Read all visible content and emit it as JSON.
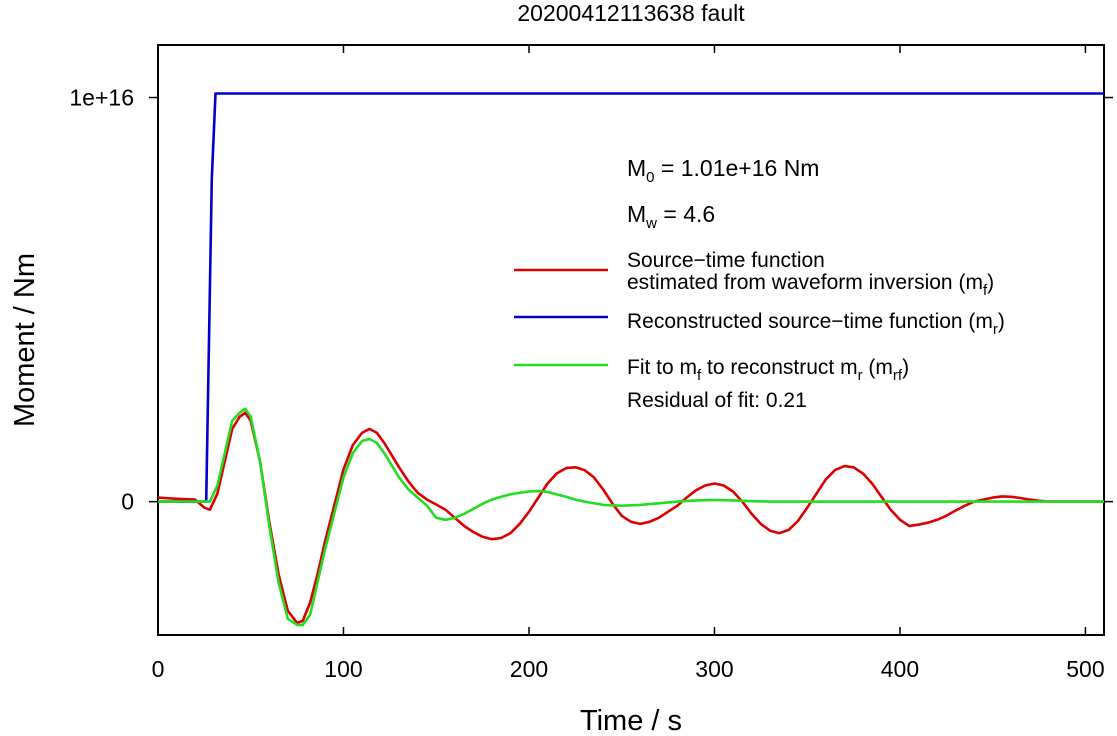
{
  "chart_data": {
    "type": "line",
    "title": "20200412113638 fault",
    "xlabel": "Time / s",
    "ylabel": "Moment / Nm",
    "xlim": [
      0,
      510
    ],
    "ylim": [
      -3300000000000000.0,
      1.13e+16
    ],
    "xticks": [
      0,
      100,
      200,
      300,
      400,
      500
    ],
    "xtick_labels": [
      "0",
      "100",
      "200",
      "300",
      "400",
      "500"
    ],
    "yticks": [
      0,
      1e+16
    ],
    "ytick_labels": [
      "0",
      "1e+16"
    ],
    "grid": false,
    "legend_position": "right",
    "annotations": {
      "m0": {
        "main": "M",
        "sub": "0",
        "rest": " = 1.01e+16 Nm"
      },
      "mw": {
        "main": "M",
        "sub": "w",
        "rest": " = 4.6"
      },
      "residual": "Residual of fit: 0.21"
    },
    "legend": [
      {
        "color": "#dd0000",
        "lines": [
          {
            "text": "Source−time function",
            "sub": "",
            "after": ""
          },
          {
            "text": "estimated from waveform inversion (m",
            "sub": "f",
            "after": ")"
          }
        ]
      },
      {
        "color": "#0000cc",
        "lines": [
          {
            "text": "Reconstructed source−time function (m",
            "sub": "r",
            "after": ")"
          }
        ]
      },
      {
        "color": "#22dd22",
        "lines": [
          {
            "text": "Fit to m",
            "sub": "f",
            "after": " to reconstruct m",
            "sub2": "r",
            "after2": " (m",
            "sub3": "rf",
            "after3": ")"
          }
        ]
      }
    ],
    "series": [
      {
        "name": "Source−time function estimated from waveform inversion (mf)",
        "color": "#dd0000",
        "x": [
          0,
          10,
          20,
          25,
          28,
          32,
          36,
          40,
          44,
          47,
          50,
          55,
          60,
          65,
          70,
          75,
          78,
          82,
          86,
          90,
          95,
          100,
          105,
          110,
          114,
          118,
          122,
          126,
          130,
          135,
          140,
          145,
          150,
          155,
          160,
          165,
          170,
          175,
          180,
          185,
          190,
          195,
          200,
          205,
          210,
          215,
          220,
          225,
          230,
          235,
          240,
          245,
          250,
          255,
          260,
          265,
          270,
          275,
          280,
          285,
          290,
          295,
          300,
          305,
          310,
          315,
          320,
          325,
          330,
          335,
          340,
          345,
          350,
          355,
          360,
          365,
          370,
          375,
          380,
          385,
          390,
          395,
          400,
          405,
          410,
          415,
          420,
          425,
          430,
          435,
          440,
          445,
          450,
          455,
          460,
          465,
          470,
          475,
          480,
          485,
          490,
          495,
          500,
          505,
          510
        ],
        "y": [
          100000000000000.0,
          70000000000000.0,
          50000000000000.0,
          -150000000000000.0,
          -200000000000000.0,
          200000000000000.0,
          1000000000000000.0,
          1800000000000000.0,
          2100000000000000.0,
          2200000000000000.0,
          2000000000000000.0,
          1000000000000000.0,
          -500000000000000.0,
          -1800000000000000.0,
          -2700000000000000.0,
          -3000000000000000.0,
          -2950000000000000.0,
          -2500000000000000.0,
          -1800000000000000.0,
          -1000000000000000.0,
          -100000000000000.0,
          800000000000000.0,
          1400000000000000.0,
          1700000000000000.0,
          1800000000000000.0,
          1700000000000000.0,
          1450000000000000.0,
          1150000000000000.0,
          850000000000000.0,
          500000000000000.0,
          220000000000000.0,
          50000000000000.0,
          -70000000000000.0,
          -200000000000000.0,
          -400000000000000.0,
          -600000000000000.0,
          -750000000000000.0,
          -870000000000000.0,
          -930000000000000.0,
          -900000000000000.0,
          -780000000000000.0,
          -550000000000000.0,
          -250000000000000.0,
          100000000000000.0,
          450000000000000.0,
          700000000000000.0,
          830000000000000.0,
          850000000000000.0,
          780000000000000.0,
          600000000000000.0,
          300000000000000.0,
          -50000000000000.0,
          -350000000000000.0,
          -500000000000000.0,
          -550000000000000.0,
          -500000000000000.0,
          -400000000000000.0,
          -250000000000000.0,
          -100000000000000.0,
          100000000000000.0,
          280000000000000.0,
          400000000000000.0,
          450000000000000.0,
          400000000000000.0,
          250000000000000.0,
          0.0,
          -300000000000000.0,
          -550000000000000.0,
          -720000000000000.0,
          -780000000000000.0,
          -700000000000000.0,
          -480000000000000.0,
          -150000000000000.0,
          200000000000000.0,
          550000000000000.0,
          780000000000000.0,
          880000000000000.0,
          850000000000000.0,
          700000000000000.0,
          450000000000000.0,
          120000000000000.0,
          -200000000000000.0,
          -450000000000000.0,
          -600000000000000.0,
          -570000000000000.0,
          -520000000000000.0,
          -450000000000000.0,
          -350000000000000.0,
          -220000000000000.0,
          -100000000000000.0,
          0.0,
          50000000000000.0,
          100000000000000.0,
          130000000000000.0,
          120000000000000.0,
          90000000000000.0,
          50000000000000.0,
          20000000000000.0,
          0.0,
          0.0,
          0.0,
          0.0,
          0.0,
          0.0,
          0.0
        ]
      },
      {
        "name": "Reconstructed source−time function (mr)",
        "color": "#0000cc",
        "x": [
          0,
          26,
          29,
          31,
          510
        ],
        "y": [
          0,
          0,
          8000000000000000.0,
          1.01e+16,
          1.01e+16
        ]
      },
      {
        "name": "Fit to mf to reconstruct mr (mrf)",
        "color": "#22dd22",
        "x": [
          0,
          10,
          20,
          25,
          28,
          32,
          36,
          40,
          44,
          47,
          50,
          55,
          60,
          65,
          70,
          75,
          78,
          82,
          86,
          90,
          95,
          100,
          105,
          110,
          114,
          118,
          122,
          126,
          130,
          135,
          140,
          145,
          150,
          155,
          160,
          165,
          170,
          175,
          180,
          185,
          190,
          195,
          200,
          205,
          210,
          215,
          220,
          225,
          230,
          240,
          250,
          260,
          270,
          280,
          290,
          300,
          310,
          320,
          330,
          340,
          360,
          380,
          400,
          450,
          500,
          510
        ],
        "y": [
          0,
          0,
          0,
          0,
          0,
          400000000000000.0,
          1200000000000000.0,
          2000000000000000.0,
          2200000000000000.0,
          2300000000000000.0,
          2100000000000000.0,
          1000000000000000.0,
          -600000000000000.0,
          -2000000000000000.0,
          -2900000000000000.0,
          -3050000000000000.0,
          -3050000000000000.0,
          -2800000000000000.0,
          -2000000000000000.0,
          -1200000000000000.0,
          -300000000000000.0,
          600000000000000.0,
          1200000000000000.0,
          1500000000000000.0,
          1550000000000000.0,
          1450000000000000.0,
          1200000000000000.0,
          900000000000000.0,
          600000000000000.0,
          300000000000000.0,
          100000000000000.0,
          -100000000000000.0,
          -400000000000000.0,
          -450000000000000.0,
          -400000000000000.0,
          -300000000000000.0,
          -180000000000000.0,
          -50000000000000.0,
          50000000000000.0,
          120000000000000.0,
          180000000000000.0,
          220000000000000.0,
          250000000000000.0,
          260000000000000.0,
          240000000000000.0,
          180000000000000.0,
          120000000000000.0,
          50000000000000.0,
          0.0,
          -80000000000000.0,
          -100000000000000.0,
          -80000000000000.0,
          -40000000000000.0,
          0.0,
          30000000000000.0,
          40000000000000.0,
          30000000000000.0,
          10000000000000.0,
          0.0,
          0.0,
          0.0,
          0.0,
          0.0,
          0.0,
          0.0,
          0.0
        ]
      }
    ]
  }
}
